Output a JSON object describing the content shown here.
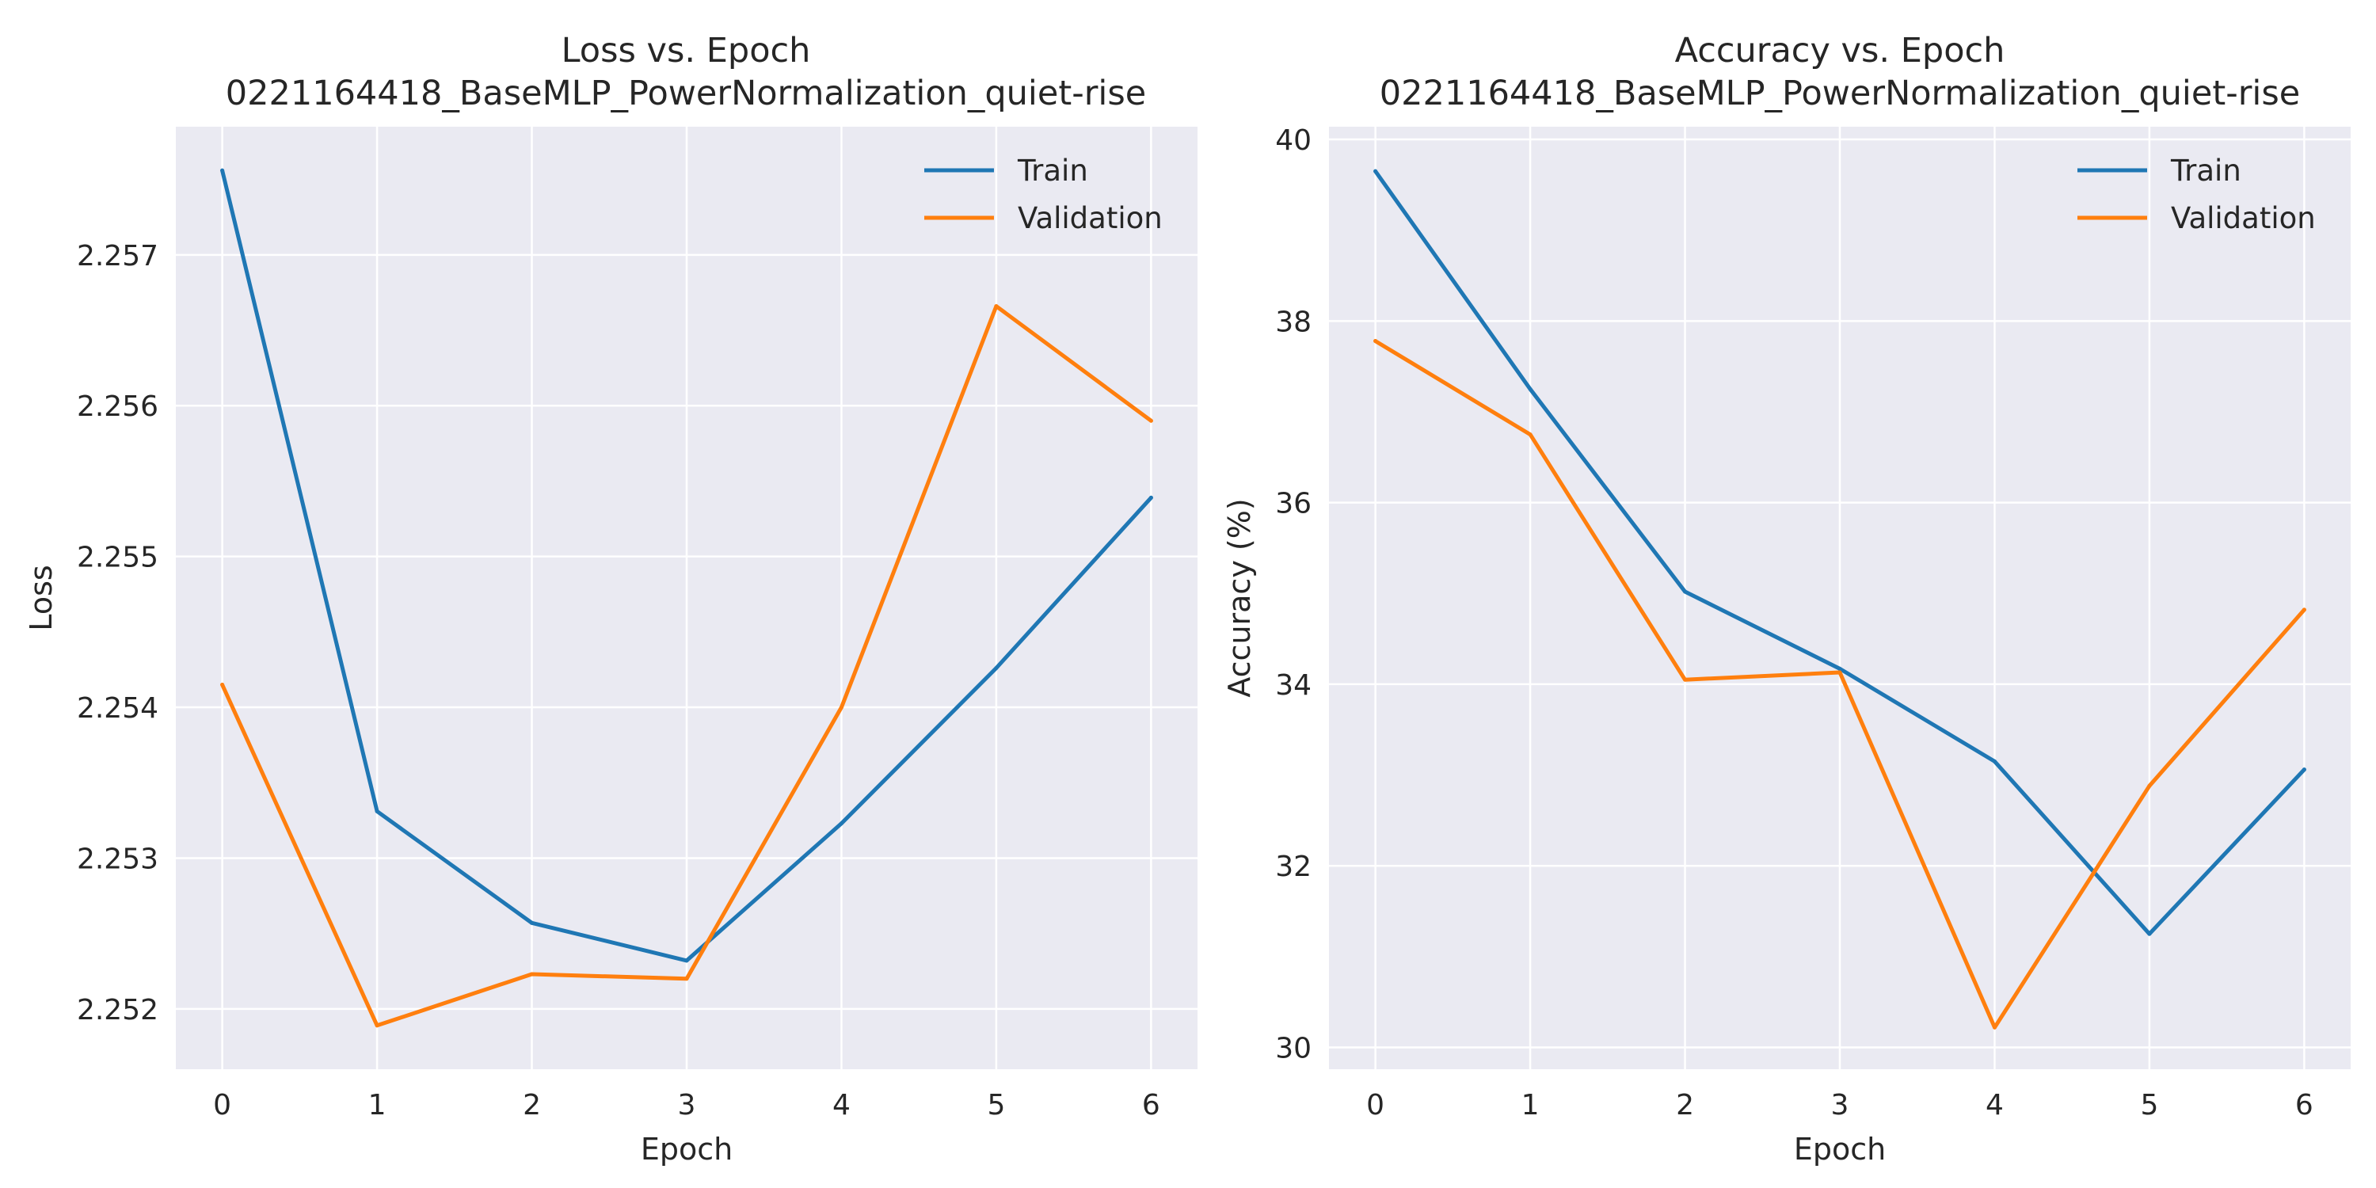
{
  "chart_data": [
    {
      "type": "line",
      "title": "Loss vs. Epoch",
      "subtitle": "0221164418_BaseMLP_PowerNormalization_quiet-rise",
      "xlabel": "Epoch",
      "ylabel": "Loss",
      "x": [
        0,
        1,
        2,
        3,
        4,
        5,
        6
      ],
      "xlim": [
        -0.3,
        6.3
      ],
      "ylim": [
        2.2516,
        2.25785
      ],
      "xticks": [
        "0",
        "1",
        "2",
        "3",
        "4",
        "5",
        "6"
      ],
      "yticks": [
        {
          "value": 2.252,
          "label": "2.252"
        },
        {
          "value": 2.253,
          "label": "2.253"
        },
        {
          "value": 2.254,
          "label": "2.254"
        },
        {
          "value": 2.255,
          "label": "2.255"
        },
        {
          "value": 2.256,
          "label": "2.256"
        },
        {
          "value": 2.257,
          "label": "2.257"
        }
      ],
      "grid": true,
      "legend_position": "top-right",
      "series": [
        {
          "name": "Train",
          "color": "#1f77b4",
          "values": [
            2.25756,
            2.25331,
            2.25257,
            2.25232,
            2.25323,
            2.25426,
            2.25539
          ]
        },
        {
          "name": "Validation",
          "color": "#ff7f0e",
          "values": [
            2.25415,
            2.25189,
            2.25223,
            2.2522,
            2.254,
            2.25666,
            2.2559
          ]
        }
      ]
    },
    {
      "type": "line",
      "title": "Accuracy vs. Epoch",
      "subtitle": "0221164418_BaseMLP_PowerNormalization_quiet-rise",
      "xlabel": "Epoch",
      "ylabel": "Accuracy (%)",
      "x": [
        0,
        1,
        2,
        3,
        4,
        5,
        6
      ],
      "xlim": [
        -0.3,
        6.3
      ],
      "ylim": [
        29.76,
        40.14
      ],
      "xticks": [
        "0",
        "1",
        "2",
        "3",
        "4",
        "5",
        "6"
      ],
      "yticks": [
        {
          "value": 30,
          "label": "30"
        },
        {
          "value": 32,
          "label": "32"
        },
        {
          "value": 34,
          "label": "34"
        },
        {
          "value": 36,
          "label": "36"
        },
        {
          "value": 38,
          "label": "38"
        },
        {
          "value": 40,
          "label": "40"
        }
      ],
      "grid": true,
      "legend_position": "top-right",
      "series": [
        {
          "name": "Train",
          "color": "#1f77b4",
          "values": [
            39.65,
            37.25,
            35.02,
            34.17,
            33.15,
            31.25,
            33.06
          ]
        },
        {
          "name": "Validation",
          "color": "#ff7f0e",
          "values": [
            37.78,
            36.75,
            34.05,
            34.13,
            30.22,
            32.88,
            34.82
          ]
        }
      ]
    }
  ],
  "style": {
    "plot_background": "#eaeaf2",
    "grid_color": "#ffffff",
    "text_color": "#262626"
  }
}
